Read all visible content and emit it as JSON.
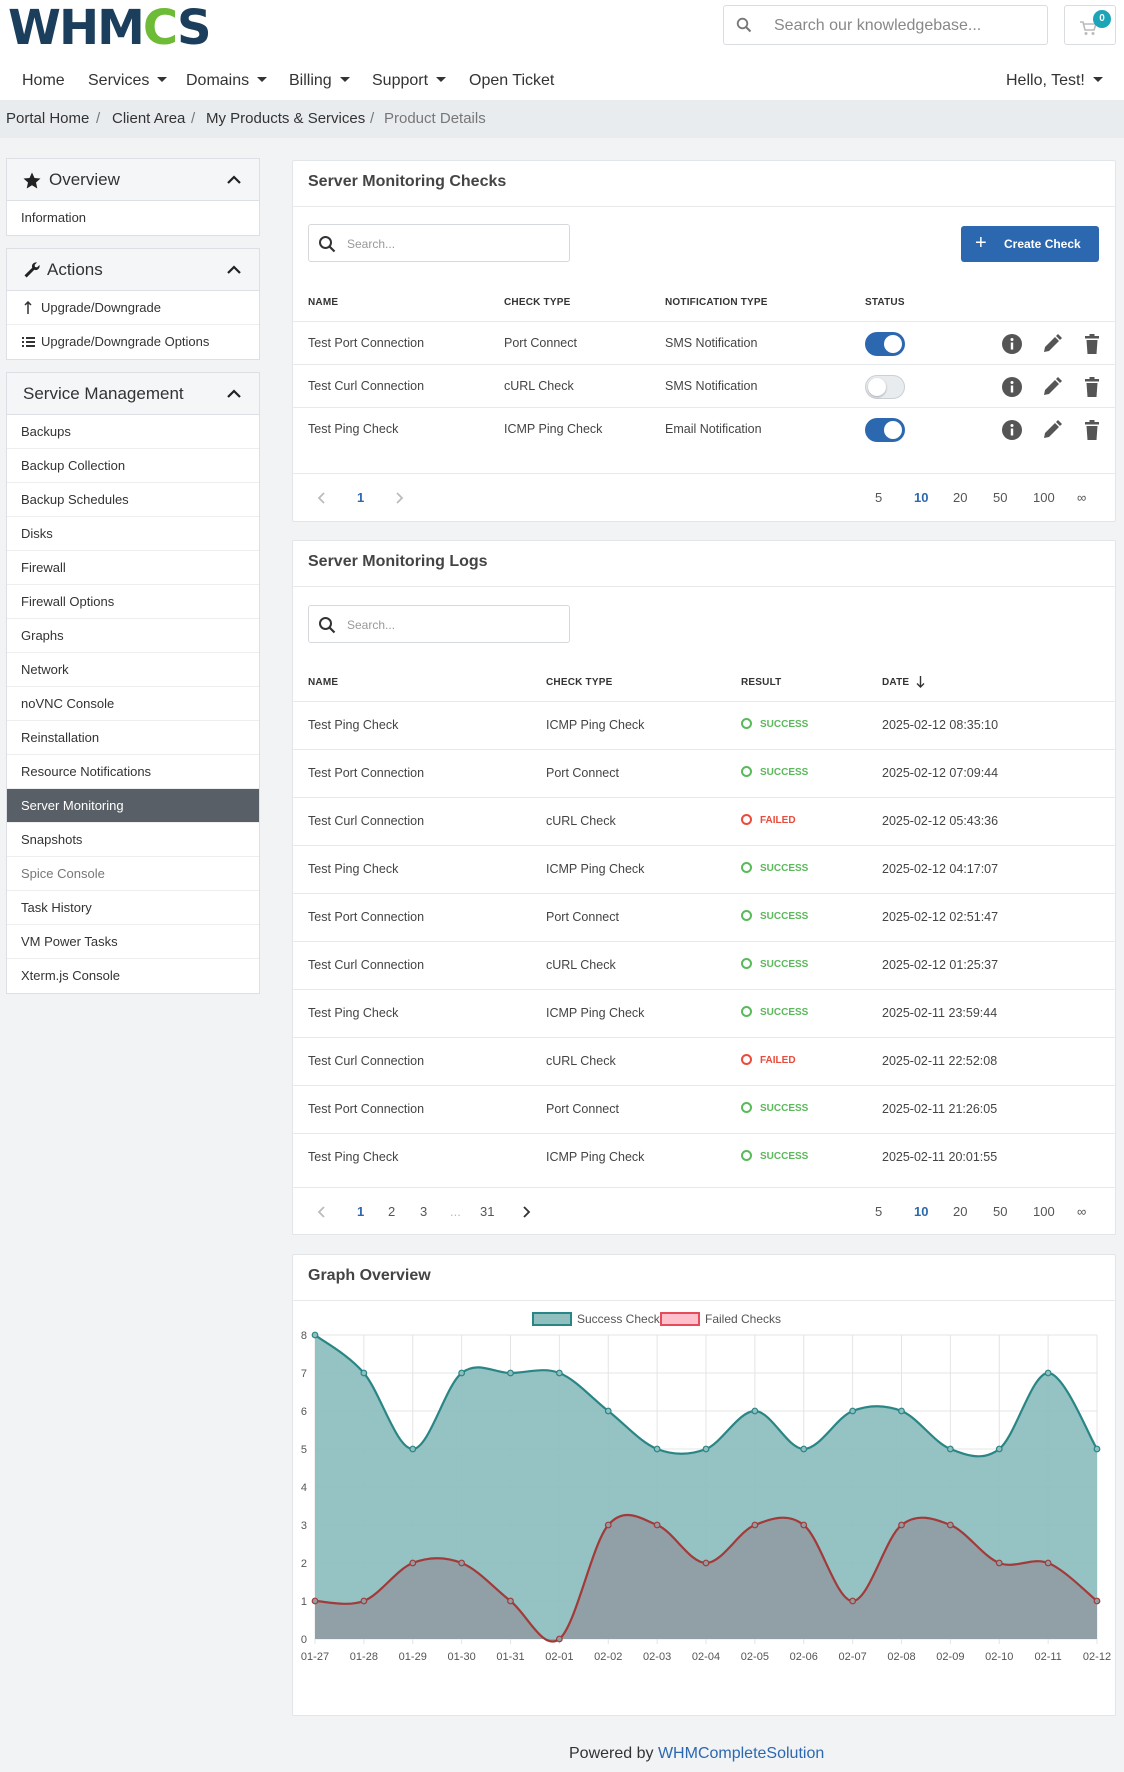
{
  "logo": {
    "text_a": "WHM",
    "text_gear": "C",
    "text_b": "S"
  },
  "header": {
    "search_placeholder": "Search our knowledgebase...",
    "cart_count": "0",
    "greeting": "Hello, Test!"
  },
  "nav": {
    "items": [
      "Home",
      "Services",
      "Domains",
      "Billing",
      "Support",
      "Open Ticket"
    ]
  },
  "breadcrumb": [
    "Portal Home",
    "Client Area",
    "My Products & Services",
    "Product Details"
  ],
  "sidebar": {
    "overview": {
      "title": "Overview",
      "items": [
        "Information"
      ]
    },
    "actions": {
      "title": "Actions",
      "items": [
        "Upgrade/Downgrade",
        "Upgrade/Downgrade Options"
      ]
    },
    "service": {
      "title": "Service Management",
      "items": [
        "Backups",
        "Backup Collection",
        "Backup Schedules",
        "Disks",
        "Firewall",
        "Firewall Options",
        "Graphs",
        "Network",
        "noVNC Console",
        "Reinstallation",
        "Resource Notifications",
        "Server Monitoring",
        "Snapshots",
        "Spice Console",
        "Task History",
        "VM Power Tasks",
        "Xterm.js Console"
      ],
      "active": "Server Monitoring"
    }
  },
  "checks": {
    "title": "Server Monitoring Checks",
    "search_placeholder": "Search...",
    "create_label": "Create Check",
    "columns": [
      "NAME",
      "CHECK TYPE",
      "NOTIFICATION TYPE",
      "STATUS"
    ],
    "rows": [
      {
        "name": "Test Port Connection",
        "type": "Port Connect",
        "notification": "SMS Notification",
        "enabled": true
      },
      {
        "name": "Test Curl Connection",
        "type": "cURL Check",
        "notification": "SMS Notification",
        "enabled": false
      },
      {
        "name": "Test Ping Check",
        "type": "ICMP Ping Check",
        "notification": "Email Notification",
        "enabled": true
      }
    ],
    "pages": [
      "1"
    ],
    "page_sizes": [
      "5",
      "10",
      "20",
      "50",
      "100",
      "∞"
    ],
    "active_size": "10"
  },
  "logs": {
    "title": "Server Monitoring Logs",
    "search_placeholder": "Search...",
    "columns": [
      "NAME",
      "CHECK TYPE",
      "RESULT",
      "DATE"
    ],
    "rows": [
      {
        "name": "Test Ping Check",
        "type": "ICMP Ping Check",
        "result": "SUCCESS",
        "date": "2025-02-12 08:35:10"
      },
      {
        "name": "Test Port Connection",
        "type": "Port Connect",
        "result": "SUCCESS",
        "date": "2025-02-12 07:09:44"
      },
      {
        "name": "Test Curl Connection",
        "type": "cURL Check",
        "result": "FAILED",
        "date": "2025-02-12 05:43:36"
      },
      {
        "name": "Test Ping Check",
        "type": "ICMP Ping Check",
        "result": "SUCCESS",
        "date": "2025-02-12 04:17:07"
      },
      {
        "name": "Test Port Connection",
        "type": "Port Connect",
        "result": "SUCCESS",
        "date": "2025-02-12 02:51:47"
      },
      {
        "name": "Test Curl Connection",
        "type": "cURL Check",
        "result": "SUCCESS",
        "date": "2025-02-12 01:25:37"
      },
      {
        "name": "Test Ping Check",
        "type": "ICMP Ping Check",
        "result": "SUCCESS",
        "date": "2025-02-11 23:59:44"
      },
      {
        "name": "Test Curl Connection",
        "type": "cURL Check",
        "result": "FAILED",
        "date": "2025-02-11 22:52:08"
      },
      {
        "name": "Test Port Connection",
        "type": "Port Connect",
        "result": "SUCCESS",
        "date": "2025-02-11 21:26:05"
      },
      {
        "name": "Test Ping Check",
        "type": "ICMP Ping Check",
        "result": "SUCCESS",
        "date": "2025-02-11 20:01:55"
      }
    ],
    "pages": [
      "1",
      "2",
      "3",
      "...",
      "31"
    ],
    "page_sizes": [
      "5",
      "10",
      "20",
      "50",
      "100",
      "∞"
    ],
    "active_size": "10"
  },
  "graph": {
    "title": "Graph Overview",
    "chart_data": {
      "type": "area",
      "x": [
        "01-27",
        "01-28",
        "01-29",
        "01-30",
        "01-31",
        "02-01",
        "02-02",
        "02-03",
        "02-04",
        "02-05",
        "02-06",
        "02-07",
        "02-08",
        "02-09",
        "02-10",
        "02-11",
        "02-12"
      ],
      "series": [
        {
          "name": "Success Checks",
          "values": [
            8,
            7,
            5,
            7,
            7,
            7,
            6,
            5,
            5,
            6,
            5,
            6,
            6,
            5,
            5,
            7,
            5
          ],
          "color": "#2a8585",
          "fill": "#8fbfbf"
        },
        {
          "name": "Failed Checks",
          "values": [
            1,
            1,
            2,
            2,
            1,
            0,
            3,
            3,
            2,
            3,
            3,
            1,
            3,
            3,
            2,
            2,
            1
          ],
          "color": "#a23a3a",
          "fill": "#8f9ea4"
        }
      ],
      "ylim": [
        0,
        8
      ],
      "yticks": [
        0,
        1,
        2,
        3,
        4,
        5,
        6,
        7,
        8
      ],
      "grid": true,
      "legend": "top"
    }
  },
  "footer": {
    "prefix": "Powered by",
    "link": "WHMCompleteSolution"
  }
}
